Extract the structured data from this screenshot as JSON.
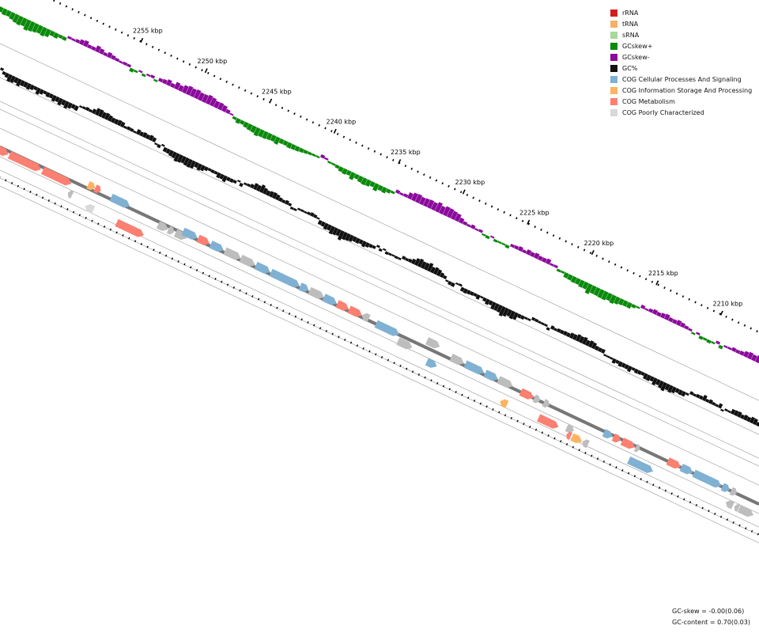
{
  "map": {
    "ticks": [
      {
        "label": "2255 kbp"
      },
      {
        "label": "2250 kbp"
      },
      {
        "label": "2245 kbp"
      },
      {
        "label": "2240 kbp"
      },
      {
        "label": "2235 kbp"
      },
      {
        "label": "2230 kbp"
      },
      {
        "label": "2225 kbp"
      },
      {
        "label": "2220 kbp"
      },
      {
        "label": "2215 kbp"
      },
      {
        "label": "2210 kbp"
      }
    ]
  },
  "legend": [
    {
      "label": "rRNA",
      "color": "#d11f1f"
    },
    {
      "label": "tRNA",
      "color": "#f5b06a"
    },
    {
      "label": "sRNA",
      "color": "#a6d99a"
    },
    {
      "label": "GCskew+",
      "color": "#0b8a0b"
    },
    {
      "label": "GCskew-",
      "color": "#8b0a9c"
    },
    {
      "label": "GC%",
      "color": "#111111"
    },
    {
      "label": "COG Cellular Processes And Signaling",
      "color": "#80b1d3"
    },
    {
      "label": "COG Information Storage And Processing",
      "color": "#fdb462"
    },
    {
      "label": "COG Metabolism",
      "color": "#fb8072"
    },
    {
      "label": "COG Poorly Characterized",
      "color": "#d9d9d9"
    }
  ],
  "stats": {
    "gc_skew": "GC-skew = -0.00(0.06)",
    "gc_content": "GC-content = 0.70(0.03)"
  },
  "colors": {
    "backbone": "#777777",
    "guide": "#999999",
    "gene_gray": "#bdbdbd"
  }
}
